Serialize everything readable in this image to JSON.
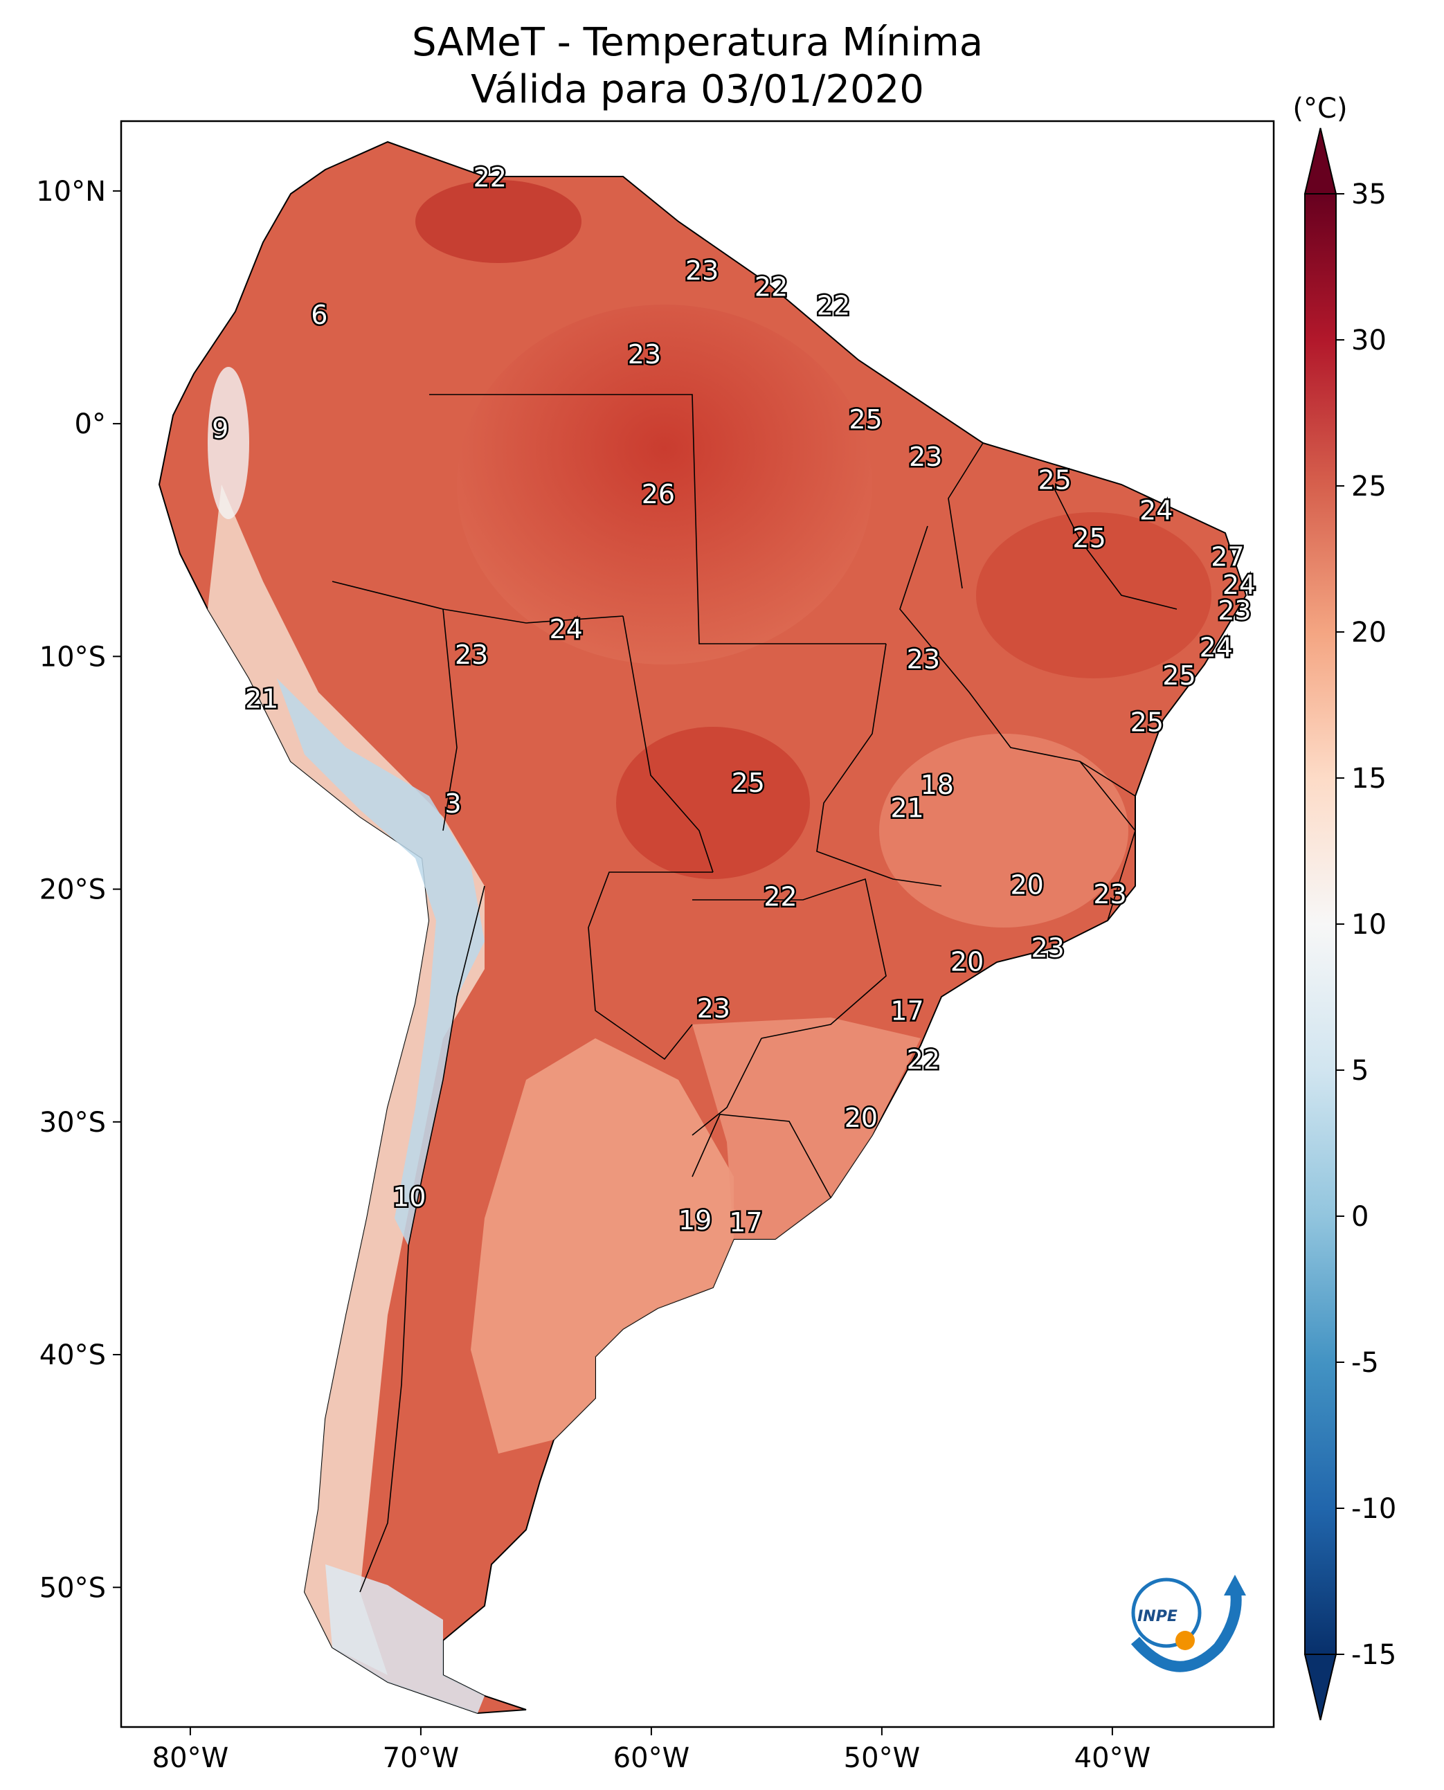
{
  "title_line1": "SAMeT - Temperatura Mínima",
  "title_line2": "Válida para 03/01/2020",
  "colorbar": {
    "unit": "(°C)",
    "min": -15,
    "max": 35,
    "ticks": [
      "-15",
      "-10",
      "-5",
      "0",
      "5",
      "10",
      "15",
      "20",
      "25",
      "30",
      "35"
    ],
    "colors": [
      "#08306b",
      "#2166ac",
      "#4393c3",
      "#92c5de",
      "#d1e5f0",
      "#f7f7f7",
      "#fddbc7",
      "#f4a582",
      "#d6604d",
      "#b2182b",
      "#67001f"
    ]
  },
  "axes": {
    "lon_ticks": [
      "80°W",
      "70°W",
      "60°W",
      "50°W",
      "40°W"
    ],
    "lat_ticks": [
      "10°N",
      "0°",
      "10°S",
      "20°S",
      "30°S",
      "40°S",
      "50°S"
    ],
    "lon_range": [
      -83,
      -33
    ],
    "lat_range": [
      -56,
      13
    ]
  },
  "labels": [
    {
      "text": "22",
      "lon": -67,
      "lat": 10.5
    },
    {
      "text": "23",
      "lon": -57.8,
      "lat": 6.5
    },
    {
      "text": "22",
      "lon": -54.8,
      "lat": 5.8
    },
    {
      "text": "22",
      "lon": -52.1,
      "lat": 5.0
    },
    {
      "text": "6",
      "lon": -74.4,
      "lat": 4.6
    },
    {
      "text": "23",
      "lon": -60.3,
      "lat": 2.9
    },
    {
      "text": "25",
      "lon": -50.7,
      "lat": 0.1
    },
    {
      "text": "9",
      "lon": -78.7,
      "lat": -0.3
    },
    {
      "text": "23",
      "lon": -48.1,
      "lat": -1.5
    },
    {
      "text": "25",
      "lon": -42.5,
      "lat": -2.5
    },
    {
      "text": "26",
      "lon": -59.7,
      "lat": -3.1
    },
    {
      "text": "24",
      "lon": -38.1,
      "lat": -3.8
    },
    {
      "text": "25",
      "lon": -41,
      "lat": -5.0
    },
    {
      "text": "27",
      "lon": -35,
      "lat": -5.8
    },
    {
      "text": "24",
      "lon": -34.5,
      "lat": -7.0
    },
    {
      "text": "23",
      "lon": -34.7,
      "lat": -8.1
    },
    {
      "text": "24",
      "lon": -63.7,
      "lat": -8.9
    },
    {
      "text": "24",
      "lon": -35.5,
      "lat": -9.7
    },
    {
      "text": "23",
      "lon": -67.8,
      "lat": -10.0
    },
    {
      "text": "23",
      "lon": -48.2,
      "lat": -10.2
    },
    {
      "text": "25",
      "lon": -37.1,
      "lat": -10.9
    },
    {
      "text": "21",
      "lon": -76.9,
      "lat": -11.9
    },
    {
      "text": "25",
      "lon": -38.5,
      "lat": -12.9
    },
    {
      "text": "25",
      "lon": -55.8,
      "lat": -15.5
    },
    {
      "text": "18",
      "lon": -47.6,
      "lat": -15.6
    },
    {
      "text": "3",
      "lon": -68.6,
      "lat": -16.4
    },
    {
      "text": "21",
      "lon": -48.9,
      "lat": -16.6
    },
    {
      "text": "20",
      "lon": -43.7,
      "lat": -19.9
    },
    {
      "text": "22",
      "lon": -54.4,
      "lat": -20.4
    },
    {
      "text": "23",
      "lon": -40.1,
      "lat": -20.3
    },
    {
      "text": "23",
      "lon": -42.8,
      "lat": -22.6
    },
    {
      "text": "20",
      "lon": -46.3,
      "lat": -23.2
    },
    {
      "text": "23",
      "lon": -57.3,
      "lat": -25.2
    },
    {
      "text": "17",
      "lon": -48.9,
      "lat": -25.3
    },
    {
      "text": "22",
      "lon": -48.2,
      "lat": -27.4
    },
    {
      "text": "20",
      "lon": -50.9,
      "lat": -29.9
    },
    {
      "text": "10",
      "lon": -70.5,
      "lat": -33.3
    },
    {
      "text": "19",
      "lon": -58.1,
      "lat": -34.3
    },
    {
      "text": "17",
      "lon": -55.9,
      "lat": -34.4
    }
  ],
  "logo": {
    "text": "INPE"
  }
}
